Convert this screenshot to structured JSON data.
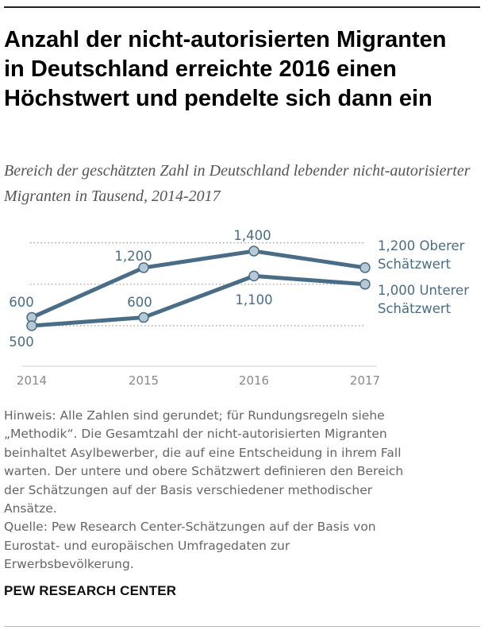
{
  "title": "Anzahl der nicht-autorisierten Migranten in Deutschland erreichte 2016 einen Höchstwert und pendelte sich dann ein",
  "subtitle": "Bereich der geschätzten Zahl in Deutschland lebender nicht-autorisierter Migranten in Tausend, 2014-2017",
  "chart_data": {
    "type": "line",
    "categories": [
      "2014",
      "2015",
      "2016",
      "2017"
    ],
    "series": [
      {
        "name": "Oberer Schätzwert",
        "values": [
          600,
          1200,
          1400,
          1200
        ]
      },
      {
        "name": "Unterer Schätzwert",
        "values": [
          500,
          600,
          1100,
          1000
        ]
      }
    ],
    "data_labels": {
      "upper": [
        "600",
        "1,200",
        "1,400",
        "1,200"
      ],
      "lower": [
        "500",
        "600",
        "1,100",
        "1,000"
      ]
    },
    "series_labels": {
      "upper": [
        "Oberer",
        "Schätzwert"
      ],
      "lower": [
        "Unterer",
        "Schätzwert"
      ]
    },
    "gridlines": [
      500,
      1000,
      1500
    ],
    "ylim": [
      350,
      1650
    ],
    "colors": {
      "line": "#4a6d87",
      "marker_fill": "#b8c9d6",
      "label": "#4a6d87",
      "axis": "#8a8a8a",
      "grid": "#999999"
    }
  },
  "notes": [
    "Hinweis: Alle Zahlen sind gerundet; für Rundungsregeln siehe",
    "„Methodik“. Die Gesamtzahl der nicht-autorisierten Migranten",
    "beinhaltet Asylbewerber, die auf eine Entscheidung in ihrem Fall",
    "warten. Der untere und obere Schätzwert definieren den Bereich",
    "der Schätzungen auf der Basis verschiedener methodischer",
    "Ansätze.",
    "Quelle: Pew Research Center-Schätzungen auf der Basis von",
    "Eurostat- und europäischen Umfragedaten zur",
    "Erwerbsbevölkerung."
  ],
  "credit": "PEW RESEARCH CENTER"
}
